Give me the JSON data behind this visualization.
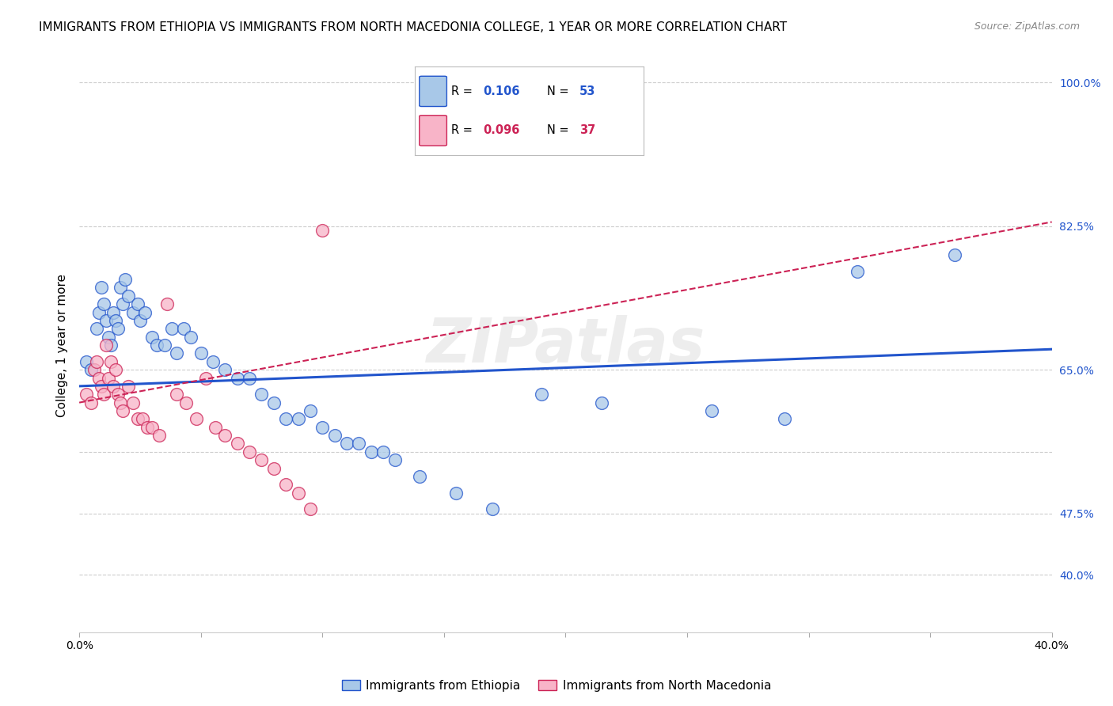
{
  "title": "IMMIGRANTS FROM ETHIOPIA VS IMMIGRANTS FROM NORTH MACEDONIA COLLEGE, 1 YEAR OR MORE CORRELATION CHART",
  "source": "Source: ZipAtlas.com",
  "xlabel_blue": "Immigrants from Ethiopia",
  "xlabel_pink": "Immigrants from North Macedonia",
  "ylabel": "College, 1 year or more",
  "xlim": [
    0.0,
    0.4
  ],
  "ylim": [
    0.33,
    1.03
  ],
  "ytick_vals": [
    0.4,
    0.475,
    0.55,
    0.65,
    0.825,
    1.0
  ],
  "ytick_labels": [
    "40.0%",
    "47.5%",
    "",
    "65.0%",
    "82.5%",
    "100.0%"
  ],
  "xticks": [
    0.0,
    0.05,
    0.1,
    0.15,
    0.2,
    0.25,
    0.3,
    0.35,
    0.4
  ],
  "xtick_labels": [
    "0.0%",
    "",
    "",
    "",
    "",
    "",
    "",
    "",
    "40.0%"
  ],
  "R_blue": 0.106,
  "N_blue": 53,
  "R_pink": 0.096,
  "N_pink": 37,
  "color_blue": "#a8c8e8",
  "color_pink": "#f8b4c8",
  "line_color_blue": "#2255cc",
  "line_color_pink": "#cc2255",
  "background_color": "#ffffff",
  "watermark": "ZIPatlas",
  "blue_points_x": [
    0.003,
    0.005,
    0.007,
    0.008,
    0.009,
    0.01,
    0.011,
    0.012,
    0.013,
    0.014,
    0.015,
    0.016,
    0.017,
    0.018,
    0.019,
    0.02,
    0.022,
    0.024,
    0.025,
    0.027,
    0.03,
    0.032,
    0.035,
    0.038,
    0.04,
    0.043,
    0.046,
    0.05,
    0.055,
    0.06,
    0.065,
    0.07,
    0.075,
    0.08,
    0.085,
    0.09,
    0.095,
    0.1,
    0.105,
    0.11,
    0.115,
    0.12,
    0.125,
    0.13,
    0.14,
    0.155,
    0.17,
    0.19,
    0.215,
    0.26,
    0.29,
    0.32,
    0.36
  ],
  "blue_points_y": [
    0.66,
    0.65,
    0.7,
    0.72,
    0.75,
    0.73,
    0.71,
    0.69,
    0.68,
    0.72,
    0.71,
    0.7,
    0.75,
    0.73,
    0.76,
    0.74,
    0.72,
    0.73,
    0.71,
    0.72,
    0.69,
    0.68,
    0.68,
    0.7,
    0.67,
    0.7,
    0.69,
    0.67,
    0.66,
    0.65,
    0.64,
    0.64,
    0.62,
    0.61,
    0.59,
    0.59,
    0.6,
    0.58,
    0.57,
    0.56,
    0.56,
    0.55,
    0.55,
    0.54,
    0.52,
    0.5,
    0.48,
    0.62,
    0.61,
    0.6,
    0.59,
    0.77,
    0.79
  ],
  "pink_points_x": [
    0.003,
    0.005,
    0.006,
    0.007,
    0.008,
    0.009,
    0.01,
    0.011,
    0.012,
    0.013,
    0.014,
    0.015,
    0.016,
    0.017,
    0.018,
    0.02,
    0.022,
    0.024,
    0.026,
    0.028,
    0.03,
    0.033,
    0.036,
    0.04,
    0.044,
    0.048,
    0.052,
    0.056,
    0.06,
    0.065,
    0.07,
    0.075,
    0.08,
    0.085,
    0.09,
    0.095,
    0.1
  ],
  "pink_points_y": [
    0.62,
    0.61,
    0.65,
    0.66,
    0.64,
    0.63,
    0.62,
    0.68,
    0.64,
    0.66,
    0.63,
    0.65,
    0.62,
    0.61,
    0.6,
    0.63,
    0.61,
    0.59,
    0.59,
    0.58,
    0.58,
    0.57,
    0.73,
    0.62,
    0.61,
    0.59,
    0.64,
    0.58,
    0.57,
    0.56,
    0.55,
    0.54,
    0.53,
    0.51,
    0.5,
    0.48,
    0.82
  ],
  "title_fontsize": 11,
  "axis_label_fontsize": 11,
  "tick_fontsize": 10
}
